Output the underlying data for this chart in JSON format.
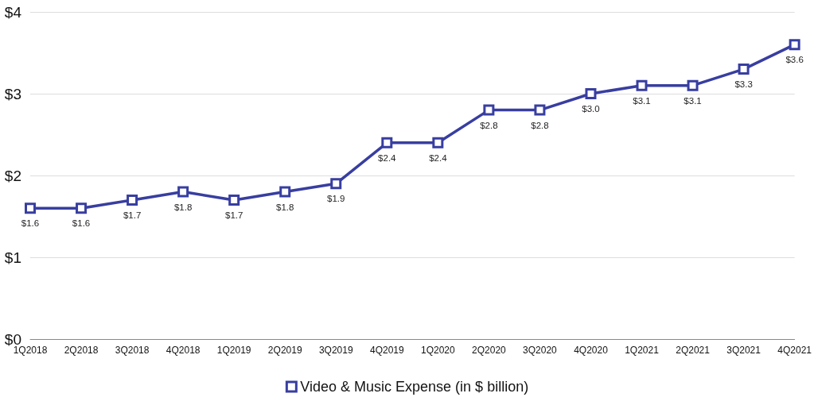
{
  "chart_data": {
    "type": "line",
    "categories": [
      "1Q2018",
      "2Q2018",
      "3Q2018",
      "4Q2018",
      "1Q2019",
      "2Q2019",
      "3Q2019",
      "4Q2019",
      "1Q2020",
      "2Q2020",
      "3Q2020",
      "4Q2020",
      "1Q2021",
      "2Q2021",
      "3Q2021",
      "4Q2021"
    ],
    "series": [
      {
        "name": "Video & Music Expense (in $ billion)",
        "color": "#383ea0",
        "values": [
          1.6,
          1.6,
          1.7,
          1.8,
          1.7,
          1.8,
          1.9,
          2.4,
          2.4,
          2.8,
          2.8,
          3.0,
          3.1,
          3.1,
          3.3,
          3.6
        ],
        "value_labels": [
          "$1.6",
          "$1.6",
          "$1.7",
          "$1.8",
          "$1.7",
          "$1.8",
          "$1.9",
          "$2.4",
          "$2.4",
          "$2.8",
          "$2.8",
          "$3.0",
          "$3.1",
          "$3.1",
          "$3.3",
          "$3.6"
        ]
      }
    ],
    "ylim": [
      0,
      4
    ],
    "yticks": [
      {
        "value": 0,
        "label": "$0"
      },
      {
        "value": 1,
        "label": "$1"
      },
      {
        "value": 2,
        "label": "$2"
      },
      {
        "value": 3,
        "label": "$3"
      },
      {
        "value": 4,
        "label": "$4"
      }
    ],
    "grid": "y",
    "legend": "bottom",
    "marker": "square",
    "line_style": "solid"
  }
}
